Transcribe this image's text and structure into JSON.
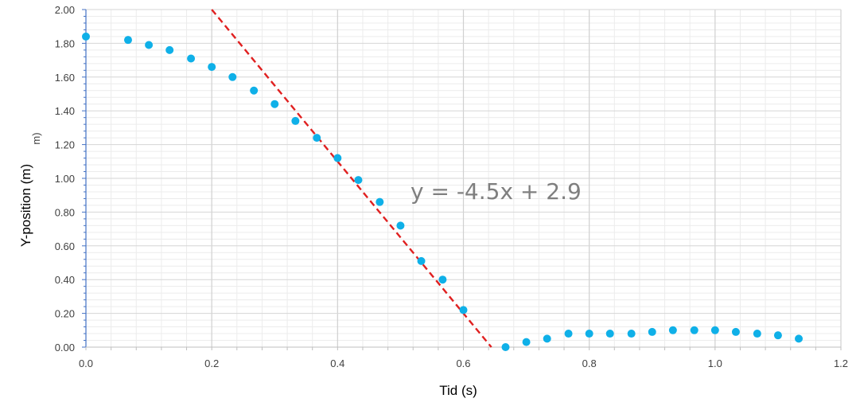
{
  "chart_data": {
    "type": "scatter",
    "xlabel": "Tid (s)",
    "ylabel": "Y-position (m)",
    "ylabel_stray": "m)",
    "xlim": [
      0,
      1.2
    ],
    "ylim": [
      0,
      2.0
    ],
    "x_ticks": [
      "0.0",
      "0.2",
      "0.4",
      "0.6",
      "0.8",
      "1.0",
      "1.2"
    ],
    "y_ticks": [
      "0.00",
      "0.20",
      "0.40",
      "0.60",
      "0.80",
      "1.00",
      "1.20",
      "1.40",
      "1.60",
      "1.80",
      "2.00"
    ],
    "grid": true,
    "series": [
      {
        "color": "#0fb0e8",
        "x": [
          0.0,
          0.067,
          0.1,
          0.133,
          0.167,
          0.2,
          0.233,
          0.267,
          0.3,
          0.333,
          0.367,
          0.4,
          0.433,
          0.467,
          0.5,
          0.533,
          0.567,
          0.6,
          0.667,
          0.7,
          0.733,
          0.767,
          0.8,
          0.833,
          0.867,
          0.9,
          0.933,
          0.967,
          1.0,
          1.033,
          1.067,
          1.1,
          1.133
        ],
        "y": [
          1.84,
          1.82,
          1.79,
          1.76,
          1.71,
          1.66,
          1.6,
          1.52,
          1.44,
          1.34,
          1.24,
          1.12,
          0.99,
          0.86,
          0.72,
          0.51,
          0.4,
          0.22,
          0.0,
          0.03,
          0.05,
          0.08,
          0.08,
          0.08,
          0.08,
          0.09,
          0.1,
          0.1,
          0.1,
          0.09,
          0.08,
          0.07,
          0.05
        ]
      }
    ],
    "trendline": {
      "equation": "y = -4.5x + 2.9",
      "slope": -4.5,
      "intercept": 2.9,
      "color": "#e02020",
      "style": "dashed"
    }
  }
}
